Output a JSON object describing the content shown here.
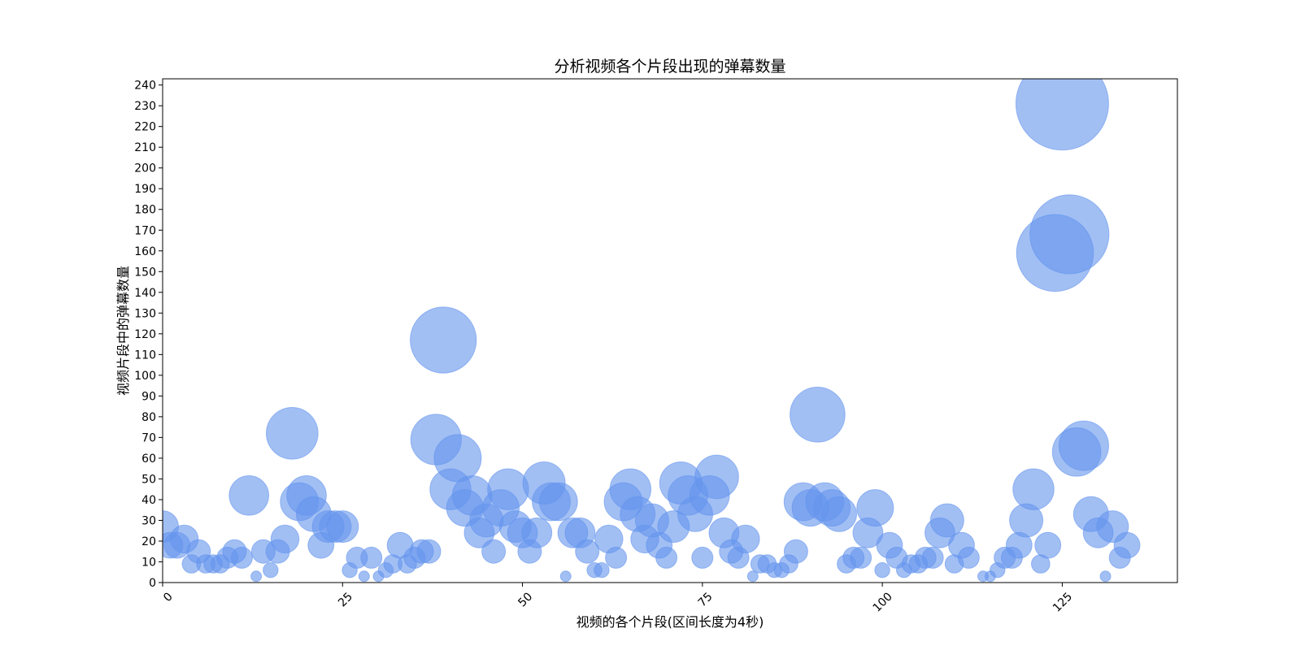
{
  "chart_data": {
    "type": "scatter",
    "title": "分析视频各个片段出现的弹幕数量",
    "xlabel": "视频的各个片段(区间长度为4秒)",
    "ylabel": "视频片段中的弹幕数量",
    "xlim": [
      0,
      141
    ],
    "ylim": [
      0,
      243
    ],
    "xticks": [
      0,
      25,
      50,
      75,
      100,
      125
    ],
    "yticks": [
      0,
      10,
      20,
      30,
      40,
      50,
      60,
      70,
      80,
      90,
      100,
      110,
      120,
      130,
      140,
      150,
      160,
      170,
      180,
      190,
      200,
      210,
      220,
      230,
      240
    ],
    "bubble_size": "proportional to y value",
    "color": "#6495ED",
    "grid": false,
    "series": [
      {
        "points": [
          {
            "x": 0,
            "y": 27
          },
          {
            "x": 1,
            "y": 18
          },
          {
            "x": 2,
            "y": 18
          },
          {
            "x": 3,
            "y": 21
          },
          {
            "x": 4,
            "y": 9
          },
          {
            "x": 5,
            "y": 15
          },
          {
            "x": 6,
            "y": 9
          },
          {
            "x": 7,
            "y": 9
          },
          {
            "x": 8,
            "y": 9
          },
          {
            "x": 9,
            "y": 12
          },
          {
            "x": 10,
            "y": 15
          },
          {
            "x": 11,
            "y": 12
          },
          {
            "x": 12,
            "y": 42
          },
          {
            "x": 13,
            "y": 3
          },
          {
            "x": 14,
            "y": 15
          },
          {
            "x": 15,
            "y": 6
          },
          {
            "x": 16,
            "y": 15
          },
          {
            "x": 17,
            "y": 21
          },
          {
            "x": 18,
            "y": 72
          },
          {
            "x": 19,
            "y": 39
          },
          {
            "x": 20,
            "y": 42
          },
          {
            "x": 21,
            "y": 33
          },
          {
            "x": 22,
            "y": 18
          },
          {
            "x": 23,
            "y": 27
          },
          {
            "x": 24,
            "y": 27
          },
          {
            "x": 25,
            "y": 27
          },
          {
            "x": 26,
            "y": 6
          },
          {
            "x": 27,
            "y": 12
          },
          {
            "x": 28,
            "y": 3
          },
          {
            "x": 29,
            "y": 12
          },
          {
            "x": 30,
            "y": 3
          },
          {
            "x": 31,
            "y": 6
          },
          {
            "x": 32,
            "y": 9
          },
          {
            "x": 33,
            "y": 18
          },
          {
            "x": 34,
            "y": 9
          },
          {
            "x": 35,
            "y": 12
          },
          {
            "x": 36,
            "y": 15
          },
          {
            "x": 37,
            "y": 15
          },
          {
            "x": 38,
            "y": 69
          },
          {
            "x": 39,
            "y": 117
          },
          {
            "x": 40,
            "y": 45
          },
          {
            "x": 41,
            "y": 60
          },
          {
            "x": 42,
            "y": 36
          },
          {
            "x": 43,
            "y": 42
          },
          {
            "x": 44,
            "y": 24
          },
          {
            "x": 45,
            "y": 30
          },
          {
            "x": 46,
            "y": 15
          },
          {
            "x": 47,
            "y": 36
          },
          {
            "x": 48,
            "y": 45
          },
          {
            "x": 49,
            "y": 27
          },
          {
            "x": 50,
            "y": 24
          },
          {
            "x": 51,
            "y": 15
          },
          {
            "x": 52,
            "y": 24
          },
          {
            "x": 53,
            "y": 48
          },
          {
            "x": 54,
            "y": 39
          },
          {
            "x": 55,
            "y": 39
          },
          {
            "x": 56,
            "y": 3
          },
          {
            "x": 57,
            "y": 24
          },
          {
            "x": 58,
            "y": 24
          },
          {
            "x": 59,
            "y": 15
          },
          {
            "x": 60,
            "y": 6
          },
          {
            "x": 61,
            "y": 6
          },
          {
            "x": 62,
            "y": 21
          },
          {
            "x": 63,
            "y": 12
          },
          {
            "x": 64,
            "y": 39
          },
          {
            "x": 65,
            "y": 45
          },
          {
            "x": 66,
            "y": 33
          },
          {
            "x": 67,
            "y": 21
          },
          {
            "x": 68,
            "y": 30
          },
          {
            "x": 69,
            "y": 18
          },
          {
            "x": 70,
            "y": 12
          },
          {
            "x": 71,
            "y": 27
          },
          {
            "x": 72,
            "y": 48
          },
          {
            "x": 73,
            "y": 42
          },
          {
            "x": 74,
            "y": 33
          },
          {
            "x": 75,
            "y": 12
          },
          {
            "x": 76,
            "y": 42
          },
          {
            "x": 77,
            "y": 51
          },
          {
            "x": 78,
            "y": 24
          },
          {
            "x": 79,
            "y": 15
          },
          {
            "x": 80,
            "y": 12
          },
          {
            "x": 81,
            "y": 21
          },
          {
            "x": 82,
            "y": 3
          },
          {
            "x": 83,
            "y": 9
          },
          {
            "x": 84,
            "y": 9
          },
          {
            "x": 85,
            "y": 6
          },
          {
            "x": 86,
            "y": 6
          },
          {
            "x": 87,
            "y": 9
          },
          {
            "x": 88,
            "y": 15
          },
          {
            "x": 89,
            "y": 39
          },
          {
            "x": 90,
            "y": 36
          },
          {
            "x": 91,
            "y": 81
          },
          {
            "x": 92,
            "y": 39
          },
          {
            "x": 93,
            "y": 36
          },
          {
            "x": 94,
            "y": 33
          },
          {
            "x": 95,
            "y": 9
          },
          {
            "x": 96,
            "y": 12
          },
          {
            "x": 97,
            "y": 12
          },
          {
            "x": 98,
            "y": 24
          },
          {
            "x": 99,
            "y": 36
          },
          {
            "x": 100,
            "y": 6
          },
          {
            "x": 101,
            "y": 18
          },
          {
            "x": 102,
            "y": 12
          },
          {
            "x": 103,
            "y": 6
          },
          {
            "x": 104,
            "y": 9
          },
          {
            "x": 105,
            "y": 9
          },
          {
            "x": 106,
            "y": 12
          },
          {
            "x": 107,
            "y": 12
          },
          {
            "x": 108,
            "y": 24
          },
          {
            "x": 109,
            "y": 30
          },
          {
            "x": 110,
            "y": 9
          },
          {
            "x": 111,
            "y": 18
          },
          {
            "x": 112,
            "y": 12
          },
          {
            "x": 114,
            "y": 3
          },
          {
            "x": 115,
            "y": 3
          },
          {
            "x": 116,
            "y": 6
          },
          {
            "x": 117,
            "y": 12
          },
          {
            "x": 118,
            "y": 12
          },
          {
            "x": 119,
            "y": 18
          },
          {
            "x": 120,
            "y": 30
          },
          {
            "x": 121,
            "y": 45
          },
          {
            "x": 122,
            "y": 9
          },
          {
            "x": 123,
            "y": 18
          },
          {
            "x": 124,
            "y": 159
          },
          {
            "x": 125,
            "y": 231
          },
          {
            "x": 126,
            "y": 168
          },
          {
            "x": 127,
            "y": 63
          },
          {
            "x": 128,
            "y": 66
          },
          {
            "x": 129,
            "y": 33
          },
          {
            "x": 130,
            "y": 24
          },
          {
            "x": 131,
            "y": 3
          },
          {
            "x": 132,
            "y": 27
          },
          {
            "x": 133,
            "y": 12
          },
          {
            "x": 134,
            "y": 18
          }
        ]
      }
    ]
  }
}
